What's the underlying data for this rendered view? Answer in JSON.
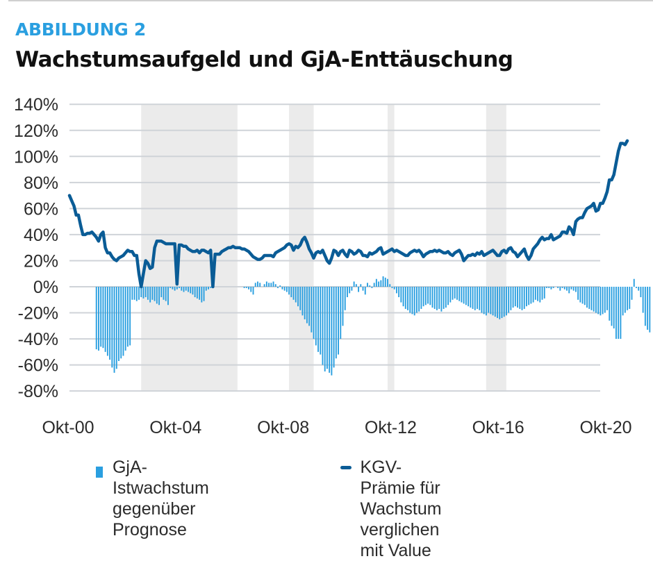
{
  "header": {
    "figure_label": "ABBILDUNG 2",
    "title": "Wachstumsaufgeld und GjA-Enttäuschung"
  },
  "colors": {
    "accent": "#2a9fe0",
    "bars": "#2a9fe0",
    "line": "#0a5c96",
    "shading": "#ebebeb",
    "grid": "#cfd3d8",
    "text": "#2b2b2b"
  },
  "legend": {
    "items": [
      {
        "type": "bar",
        "line1": "GjA-Istwachstum",
        "line2": "gegenüber Prognose"
      },
      {
        "type": "line",
        "line1": "KGV-Prämie für Wachstum",
        "line2": "verglichen mit Value"
      }
    ]
  },
  "chart_data": {
    "type": "bar+line",
    "title": "Wachstumsaufgeld und GjA-Enttäuschung",
    "xlabel": "",
    "ylabel": "",
    "x_unit": "months since Okt-00 (monthly observations)",
    "x_ticks": [
      {
        "month": 0,
        "label": "Okt-00"
      },
      {
        "month": 48,
        "label": "Okt-04"
      },
      {
        "month": 96,
        "label": "Okt-08"
      },
      {
        "month": 144,
        "label": "Okt-12"
      },
      {
        "month": 192,
        "label": "Okt-16"
      },
      {
        "month": 240,
        "label": "Okt-20"
      }
    ],
    "y_ticks": [
      {
        "value": 140,
        "label": "140%"
      },
      {
        "value": 120,
        "label": "120%"
      },
      {
        "value": 100,
        "label": "100%"
      },
      {
        "value": 80,
        "label": "80%"
      },
      {
        "value": 60,
        "label": "60%"
      },
      {
        "value": 40,
        "label": "40%"
      },
      {
        "value": 20,
        "label": "20%"
      },
      {
        "value": 0,
        "label": "0%"
      },
      {
        "value": -20,
        "label": "-20%"
      },
      {
        "value": -40,
        "label": "-40%"
      },
      {
        "value": -60,
        "label": "-60%"
      },
      {
        "value": -80,
        "label": "-80%"
      }
    ],
    "ylim": [
      -80,
      140
    ],
    "xlim": [
      0,
      240
    ],
    "grid": true,
    "legend_position": "bottom",
    "shaded_periods_months": [
      [
        32,
        75
      ],
      [
        98,
        109
      ],
      [
        142,
        145
      ],
      [
        186,
        195
      ]
    ],
    "series": [
      {
        "name": "KGV-Prämie für Wachstum verglichen mit Value",
        "type": "line",
        "start_month": 0,
        "values": [
          70,
          66,
          62,
          55,
          55,
          47,
          40,
          40,
          41,
          41,
          42,
          40,
          38,
          35,
          40,
          42,
          30,
          26,
          26,
          23,
          21,
          20,
          22,
          23,
          24,
          26,
          28,
          27,
          27,
          24,
          24,
          10,
          0,
          10,
          20,
          18,
          14,
          15,
          30,
          35,
          35,
          35,
          34,
          33,
          33,
          33,
          33,
          33,
          2,
          32,
          32,
          31,
          31,
          29,
          28,
          27,
          27,
          28,
          26,
          28,
          28,
          27,
          26,
          28,
          0,
          25,
          25,
          25,
          27,
          28,
          29,
          30,
          30,
          31,
          30,
          30,
          30,
          29,
          29,
          28,
          27,
          25,
          23,
          22,
          21,
          21,
          22,
          24,
          24,
          24,
          24,
          23,
          26,
          27,
          28,
          29,
          30,
          32,
          33,
          32,
          28,
          31,
          30,
          32,
          36,
          38,
          34,
          29,
          26,
          22,
          26,
          27,
          26,
          28,
          24,
          20,
          18,
          22,
          28,
          27,
          24,
          27,
          28,
          25,
          23,
          28,
          27,
          25,
          26,
          28,
          27,
          24,
          24,
          23,
          26,
          25,
          26,
          27,
          29,
          30,
          25,
          26,
          27,
          28,
          29,
          27,
          28,
          27,
          26,
          25,
          24,
          24,
          26,
          27,
          28,
          27,
          28,
          26,
          23,
          25,
          26,
          27,
          27,
          28,
          27,
          28,
          27,
          26,
          26,
          27,
          25,
          24,
          26,
          27,
          28,
          25,
          20,
          22,
          24,
          24,
          25,
          24,
          26,
          25,
          27,
          24,
          25,
          26,
          27,
          28,
          26,
          24,
          24,
          27,
          28,
          26,
          29,
          30,
          27,
          26,
          23,
          25,
          27,
          29,
          24,
          21,
          24,
          29,
          31,
          33,
          36,
          38,
          36,
          37,
          37,
          40,
          36,
          37,
          38,
          39,
          42,
          42,
          41,
          46,
          44,
          40,
          50,
          52,
          53,
          53,
          57,
          60,
          61,
          62,
          64,
          58,
          59,
          64,
          64,
          68,
          73,
          82,
          82,
          86,
          95,
          104,
          110,
          110,
          109,
          112
        ],
        "color": "#0a5c96"
      },
      {
        "name": "GjA-Istwachstum gegenüber Prognose",
        "type": "bar",
        "start_month": 0,
        "values": [
          0,
          0,
          0,
          0,
          0,
          0,
          0,
          0,
          0,
          0,
          0,
          0,
          -48,
          -49,
          -46,
          -47,
          -50,
          -53,
          -56,
          -62,
          -66,
          -63,
          -57,
          -55,
          -53,
          -49,
          -46,
          -45,
          -10,
          -10,
          -11,
          -10,
          -8,
          -9,
          -8,
          -10,
          -12,
          -10,
          -11,
          -13,
          -14,
          -8,
          -10,
          -11,
          -14,
          -1,
          -2,
          -3,
          -2,
          -1,
          -3,
          -4,
          -3,
          -4,
          -5,
          -6,
          -8,
          -9,
          -10,
          -12,
          -11,
          -3,
          -2,
          -1,
          -1,
          0,
          0,
          0,
          0,
          0,
          0,
          0,
          0,
          0,
          0,
          0,
          0,
          0,
          -1,
          -1,
          -2,
          -4,
          -6,
          3,
          4,
          3,
          0,
          2,
          4,
          3,
          3,
          4,
          2,
          -1,
          1,
          -2,
          -3,
          -4,
          -6,
          -8,
          -10,
          -12,
          -15,
          -18,
          -22,
          -25,
          -28,
          -30,
          -35,
          -40,
          -45,
          -50,
          -52,
          -60,
          -65,
          -63,
          -66,
          -68,
          -62,
          -55,
          -52,
          -40,
          -30,
          -18,
          -8,
          -5,
          -3,
          4,
          2,
          -4,
          2,
          -3,
          -6,
          3,
          1,
          -1,
          3,
          6,
          4,
          5,
          8,
          7,
          6,
          2,
          -1,
          -2,
          -5,
          -8,
          -12,
          -15,
          -17,
          -18,
          -20,
          -21,
          -22,
          -20,
          -19,
          -17,
          -15,
          -14,
          -13,
          -14,
          -16,
          -17,
          -18,
          -17,
          -19,
          -17,
          -16,
          -14,
          -12,
          -10,
          -9,
          -10,
          -11,
          -12,
          -13,
          -14,
          -15,
          -16,
          -17,
          -18,
          -17,
          -18,
          -20,
          -21,
          -22,
          -20,
          -21,
          -22,
          -23,
          -24,
          -25,
          -24,
          -23,
          -22,
          -20,
          -18,
          -16,
          -15,
          -16,
          -17,
          -18,
          -17,
          -15,
          -14,
          -13,
          -12,
          -10,
          -11,
          -12,
          -10,
          -9,
          -1,
          -1,
          -2,
          -1,
          0,
          -1,
          -3,
          -1,
          -2,
          -3,
          -5,
          -2,
          -3,
          -4,
          -10,
          -12,
          -13,
          -14,
          -16,
          -17,
          -18,
          -19,
          -20,
          -21,
          -22,
          -21,
          -20,
          -18,
          -26,
          -30,
          -32,
          -40,
          -40,
          -40,
          -22,
          -20,
          -18,
          -17,
          -10,
          6,
          -1,
          -3,
          -8,
          -20,
          -30,
          -33,
          -35
        ],
        "color": "#2a9fe0"
      }
    ]
  }
}
